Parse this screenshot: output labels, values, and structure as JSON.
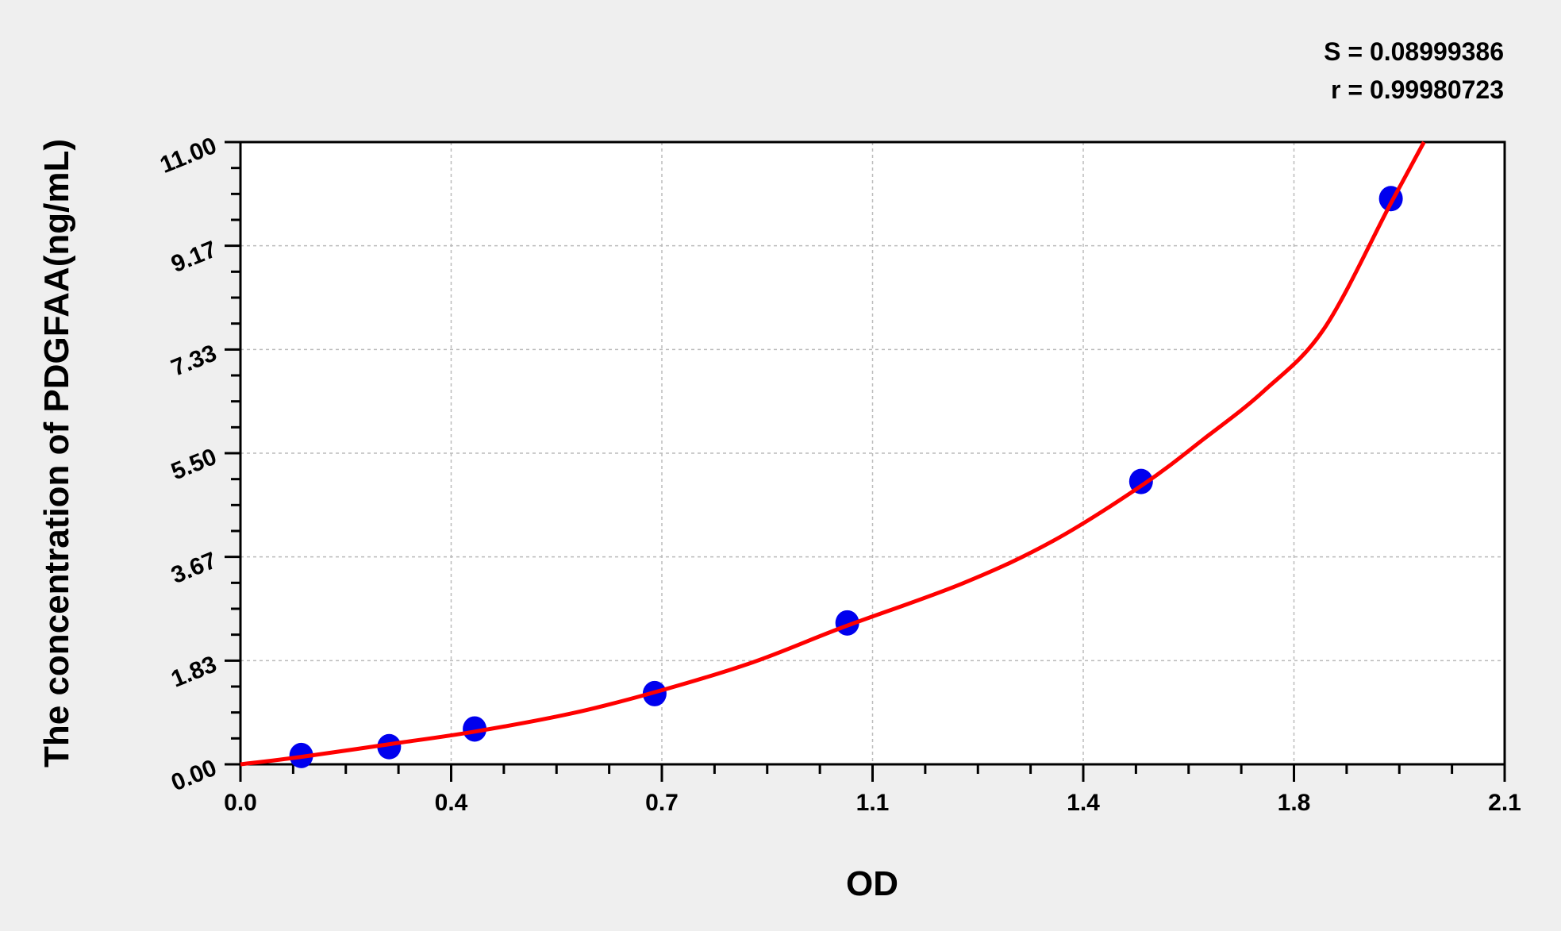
{
  "chart_data": {
    "type": "scatter",
    "xlabel": "OD",
    "ylabel": "The concentration of PDGFAA(ng/mL)",
    "xlim": [
      0,
      2.1
    ],
    "ylim": [
      0,
      11
    ],
    "x_tick_labels": [
      "0.0",
      "0.4",
      "0.7",
      "1.1",
      "1.4",
      "1.8",
      "2.1"
    ],
    "y_tick_labels": [
      "0.00",
      "1.83",
      "3.67",
      "5.50",
      "7.33",
      "9.17",
      "11.00"
    ],
    "grid": true,
    "stats": [
      "S = 0.08999386",
      "r = 0.99980723"
    ],
    "points": {
      "x": [
        0.101,
        0.247,
        0.389,
        0.688,
        1.008,
        1.496,
        1.911
      ],
      "y": [
        0.156,
        0.312,
        0.625,
        1.25,
        2.5,
        5.0,
        10.0
      ],
      "color": "#0000ee"
    },
    "fit_curve": {
      "x": [
        0,
        0.1,
        0.25,
        0.39,
        0.55,
        0.69,
        0.85,
        1.0,
        1.2,
        1.35,
        1.5,
        1.6,
        1.7,
        1.8,
        1.91,
        1.966
      ],
      "y": [
        0,
        0.13,
        0.36,
        0.58,
        0.9,
        1.28,
        1.8,
        2.42,
        3.2,
        3.95,
        4.95,
        5.75,
        6.6,
        7.7,
        9.9,
        11.0
      ],
      "color": "#ff0000"
    }
  }
}
